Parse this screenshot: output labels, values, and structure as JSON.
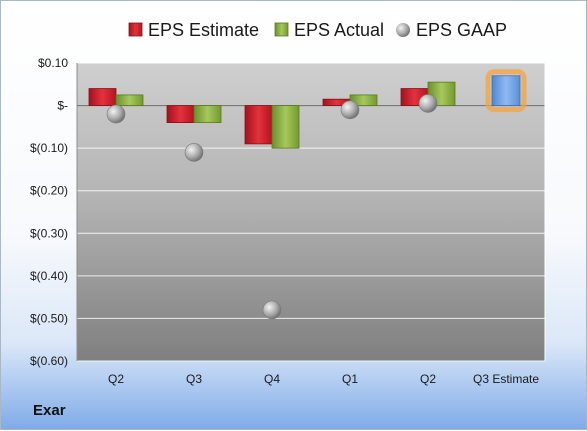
{
  "company": "Exar",
  "chart_data": {
    "type": "bar",
    "categories": [
      "Q2",
      "Q3",
      "Q4",
      "Q1",
      "Q2",
      "Q3 Estimate"
    ],
    "series": [
      {
        "name": "EPS Estimate",
        "values": [
          0.04,
          -0.04,
          -0.09,
          0.015,
          0.04,
          null
        ],
        "color": "#d6202f"
      },
      {
        "name": "EPS Actual",
        "values": [
          0.025,
          -0.04,
          -0.1,
          0.025,
          0.055,
          null
        ],
        "color": "#8db145"
      },
      {
        "name": "EPS GAAP",
        "kind": "point",
        "values": [
          -0.02,
          -0.11,
          -0.48,
          -0.01,
          0.005,
          null
        ],
        "color": "#a6a6a6"
      }
    ],
    "projection": {
      "category": "Q3 Estimate",
      "value": 0.07,
      "color": "#6fa2e4",
      "glow": "#f6a43c"
    },
    "yticks": [
      0.1,
      0.0,
      -0.1,
      -0.2,
      -0.3,
      -0.4,
      -0.5,
      -0.6
    ],
    "ytick_labels": [
      "$0.10",
      "$-",
      "$(0.10)",
      "$(0.20)",
      "$(0.30)",
      "$(0.40)",
      "$(0.50)",
      "$(0.60)"
    ],
    "ylim": [
      -0.6,
      0.1
    ],
    "grid": true,
    "legend": "top"
  }
}
